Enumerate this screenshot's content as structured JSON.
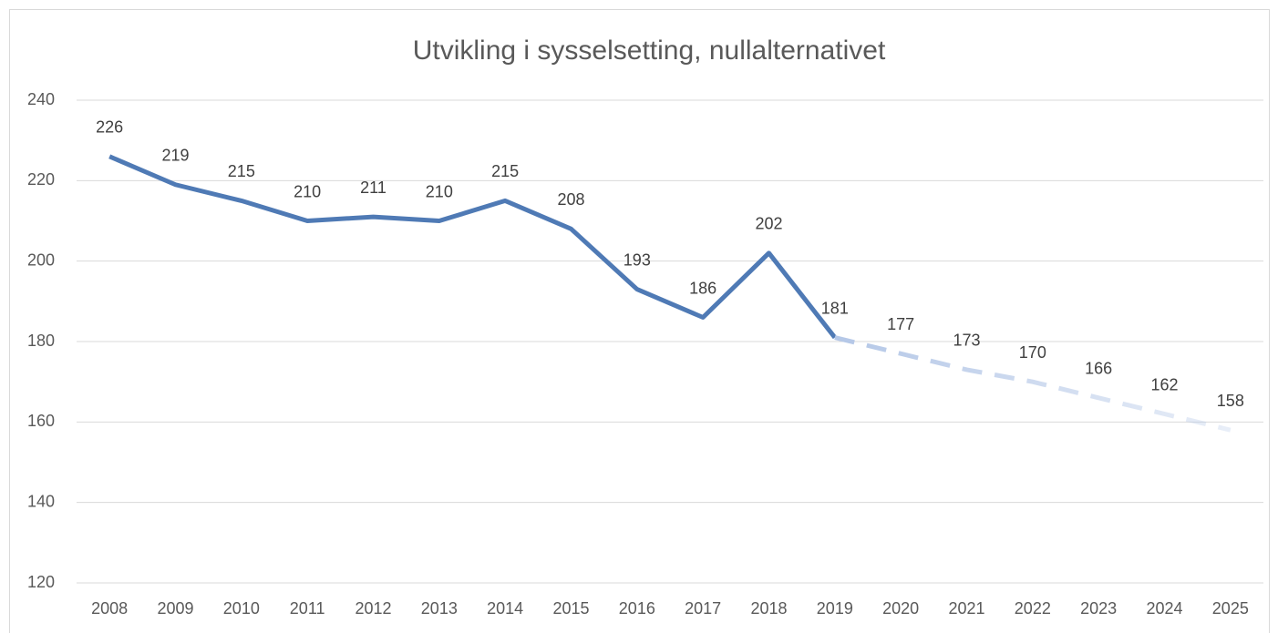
{
  "chart_data": {
    "type": "line",
    "title": "Utvikling i sysselsetting, nullalternativet",
    "categories": [
      "2008",
      "2009",
      "2010",
      "2011",
      "2012",
      "2013",
      "2014",
      "2015",
      "2016",
      "2017",
      "2018",
      "2019",
      "2020",
      "2021",
      "2022",
      "2023",
      "2024",
      "2025"
    ],
    "series": [
      {
        "color": "#4f7ab5",
        "dashed": false,
        "values": [
          226,
          219,
          215,
          210,
          211,
          210,
          215,
          208,
          193,
          186,
          202,
          181,
          null,
          null,
          null,
          null,
          null,
          null
        ]
      },
      {
        "color": "#b4c7e7",
        "dashed": true,
        "fade": true,
        "values": [
          null,
          null,
          null,
          null,
          null,
          null,
          null,
          null,
          null,
          null,
          null,
          181,
          177,
          173,
          170,
          166,
          162,
          158
        ]
      }
    ],
    "ylim": [
      120,
      240
    ],
    "yticks": [
      120,
      140,
      160,
      180,
      200,
      220,
      240
    ],
    "grid": true,
    "data_labels": true
  }
}
